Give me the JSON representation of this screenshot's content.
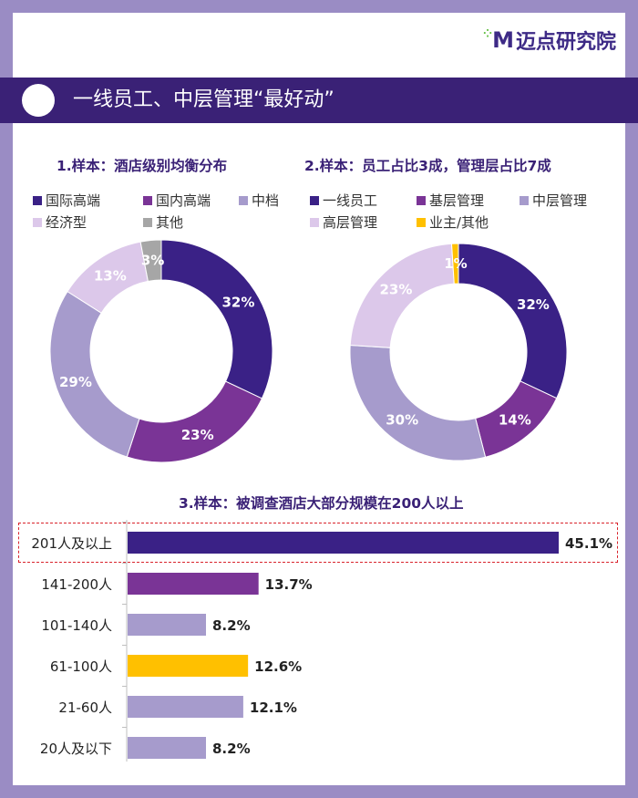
{
  "logo": {
    "mark": "M",
    "text": "迈点研究院"
  },
  "header": {
    "title": "一线员工、中层管理“最好动”"
  },
  "chart_data": [
    {
      "type": "pie",
      "title": "1.样本：酒店级别均衡分布",
      "labels": [
        "国际高端",
        "国内高端",
        "中档",
        "经济型",
        "其他"
      ],
      "values": [
        32,
        23,
        29,
        13,
        3
      ],
      "value_labels": [
        "32%",
        "23%",
        "29%",
        "13%",
        "3%"
      ],
      "colors": [
        "#3a2186",
        "#7a3496",
        "#a69bcc",
        "#dcc8ea",
        "#a6a6a6"
      ]
    },
    {
      "type": "pie",
      "title": "2.样本：员工占比3成，管理层占比7成",
      "labels": [
        "一线员工",
        "基层管理",
        "中层管理",
        "高层管理",
        "业主/其他"
      ],
      "values": [
        32,
        14,
        30,
        23,
        1
      ],
      "value_labels": [
        "32%",
        "14%",
        "30%",
        "23%",
        "1%"
      ],
      "colors": [
        "#3a2186",
        "#7a3496",
        "#a69bcc",
        "#dcc8ea",
        "#ffc000"
      ]
    },
    {
      "type": "bar",
      "orientation": "horizontal",
      "title": "3.样本：被调查酒店大部分规模在200人以上",
      "categories": [
        "201人及以上",
        "141-200人",
        "101-140人",
        "61-100人",
        "21-60人",
        "20人及以下"
      ],
      "values": [
        45.1,
        13.7,
        8.2,
        12.6,
        12.1,
        8.2
      ],
      "value_labels": [
        "45.1%",
        "13.7%",
        "8.2%",
        "12.6%",
        "12.1%",
        "8.2%"
      ],
      "colors": [
        "#3a2186",
        "#7a3496",
        "#a69bcc",
        "#ffc000",
        "#a69bcc",
        "#a69bcc"
      ],
      "highlight": "201人及以上"
    }
  ]
}
